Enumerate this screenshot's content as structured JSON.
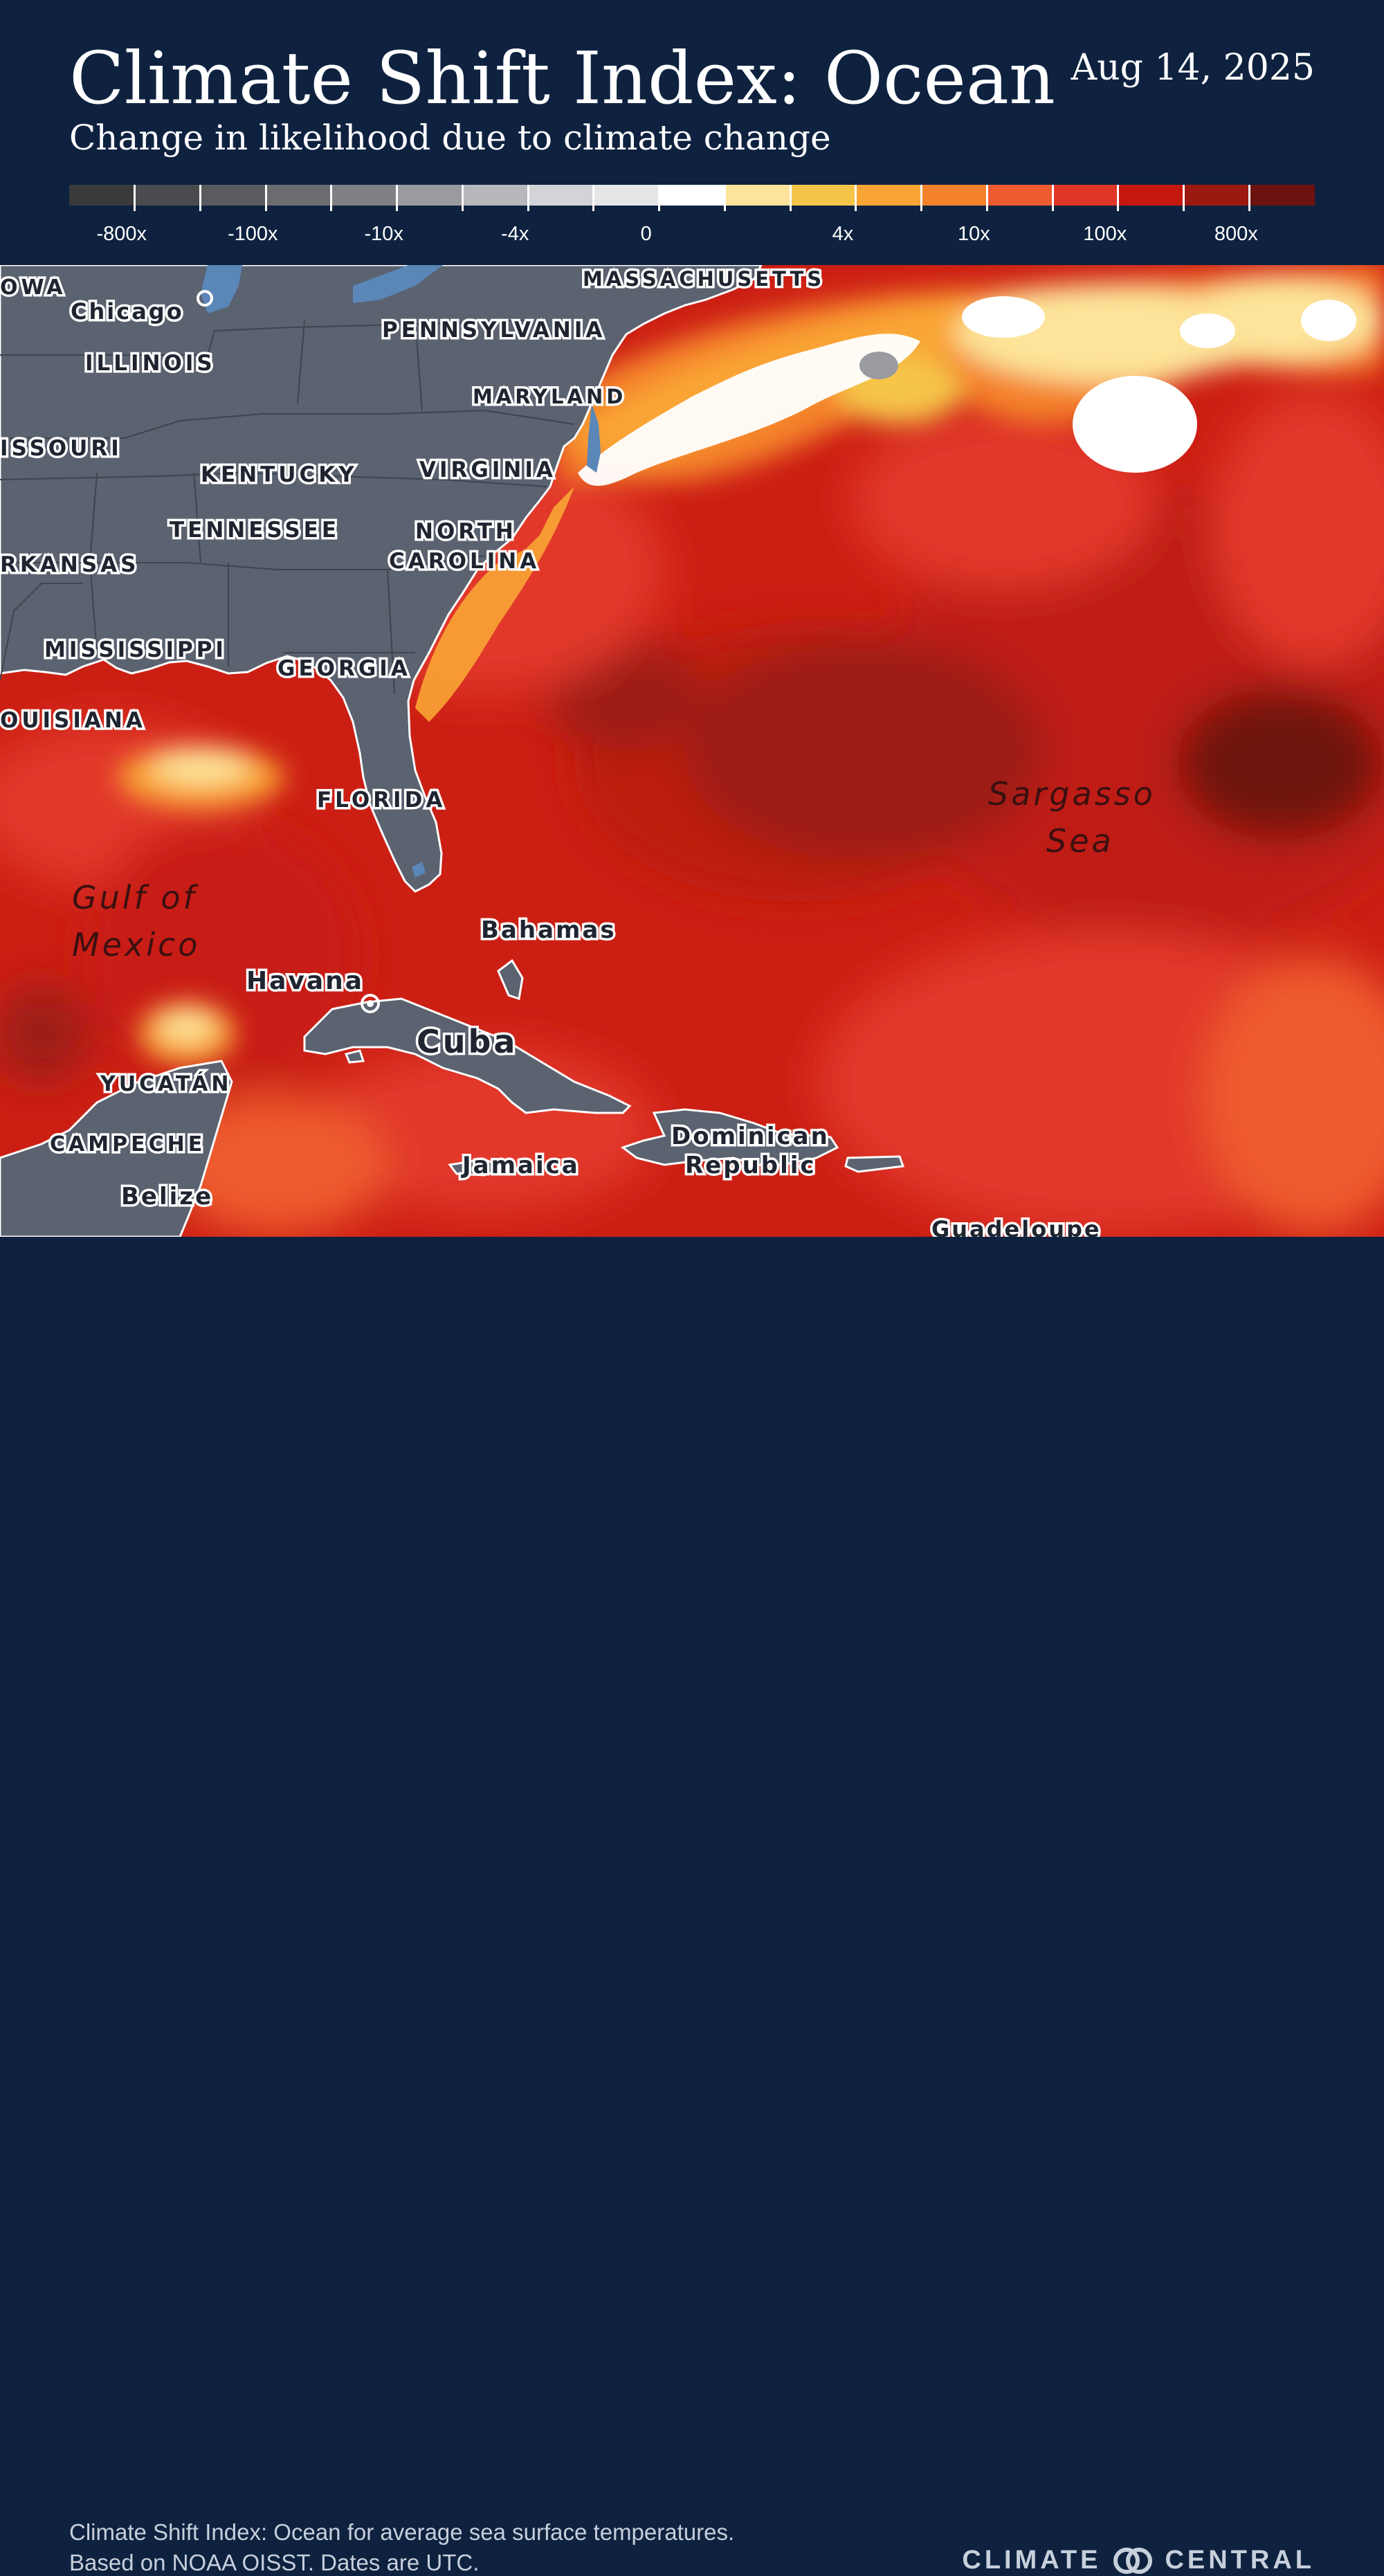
{
  "header": {
    "title": "Climate Shift Index: Ocean",
    "subtitle": "Change in likelihood due to climate change",
    "date": "Aug 14, 2025"
  },
  "legend": {
    "colors": [
      "#3a3a3c",
      "#4a4b4e",
      "#5a5b5f",
      "#6b6c70",
      "#808186",
      "#9a9ba0",
      "#b7b8bc",
      "#d3d4d7",
      "#e6e6e8",
      "#ffffff",
      "#fde49a",
      "#f5c54a",
      "#f9a535",
      "#f4812c",
      "#ee5b2e",
      "#df3627",
      "#c4180f",
      "#9b1910",
      "#6c1210"
    ],
    "ticks": [
      "-800x",
      "-100x",
      "-10x",
      "-4x",
      "0",
      "4x",
      "10x",
      "100x",
      "800x"
    ]
  },
  "map": {
    "region_labels": {
      "iowa": "OWA",
      "illinois": "ILLINOIS",
      "missouri": "ISSOURI",
      "kentucky": "KENTUCKY",
      "tennessee": "TENNESSEE",
      "arkansas": "RKANSAS",
      "mississippi": "MISSISSIPPI",
      "louisiana": "OUISIANA",
      "georgia": "GEORGIA",
      "florida": "FLORIDA",
      "pennsylvania": "PENNSYLVANIA",
      "maryland": "MARYLAND",
      "virginia": "VIRGINIA",
      "north_carolina_1": "NORTH",
      "north_carolina_2": "CAROLINA",
      "massachusetts": "MASSACHUSETTS",
      "yucatan": "YUCATÁN",
      "campeche": "CAMPECHE"
    },
    "place_labels": {
      "chicago": "Chicago",
      "havana": "Havana",
      "cuba": "Cuba",
      "bahamas": "Bahamas",
      "jamaica": "Jamaica",
      "dominican_1": "Dominican",
      "dominican_2": "Republic",
      "belize": "Belize",
      "guadeloupe": "Guadeloupe"
    },
    "sea_labels": {
      "gulf_1": "Gulf of",
      "gulf_2": "Mexico",
      "sargasso_1": "Sargasso",
      "sargasso_2": "Sea"
    }
  },
  "footer": {
    "line1": "Climate Shift Index: Ocean for average sea surface temperatures.",
    "line2": "Based on NOAA OISST. Dates are UTC.",
    "brand_left": "CLIMATE",
    "brand_right": "CENTRAL"
  }
}
